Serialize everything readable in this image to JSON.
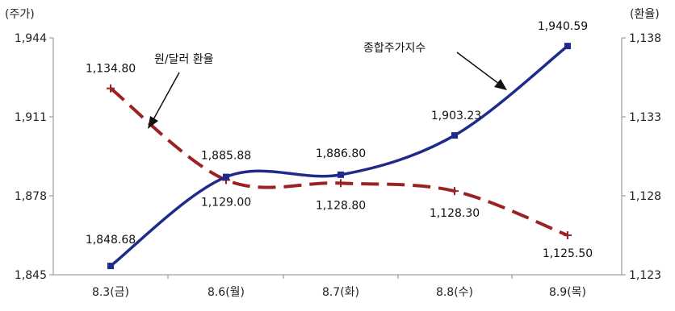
{
  "chart_data": {
    "type": "line",
    "categories": [
      "8.3(금)",
      "8.6(월)",
      "8.7(화)",
      "8.8(수)",
      "8.9(목)"
    ],
    "left_axis": {
      "unit_label": "(주가)",
      "ylim": [
        1845,
        1944
      ],
      "ticks": [
        "1,944",
        "1,911",
        "1,878",
        "1,845"
      ]
    },
    "right_axis": {
      "unit_label": "(환율)",
      "ylim": [
        1123,
        1138
      ],
      "ticks": [
        "1,138",
        "1,133",
        "1,128",
        "1,123"
      ]
    },
    "series": [
      {
        "name": "종합주가지수",
        "axis": "left",
        "color": "#1f2a8c",
        "style": "solid",
        "values": [
          1848.68,
          1885.88,
          1886.8,
          1903.23,
          1940.59
        ],
        "labels": [
          "1,848.68",
          "1,885.88",
          "1,886.80",
          "1,903.23",
          "1,940.59"
        ]
      },
      {
        "name": "원/달러 환율",
        "axis": "right",
        "color": "#9b2222",
        "style": "dashed",
        "values": [
          1134.8,
          1129.0,
          1128.8,
          1128.3,
          1125.5
        ],
        "labels": [
          "1,134.80",
          "1,129.00",
          "1,128.80",
          "1,128.30",
          "1,125.50"
        ]
      }
    ],
    "annotations": [
      "원/달러 환율",
      "종합주가지수"
    ],
    "grid": false,
    "legend": "none"
  }
}
